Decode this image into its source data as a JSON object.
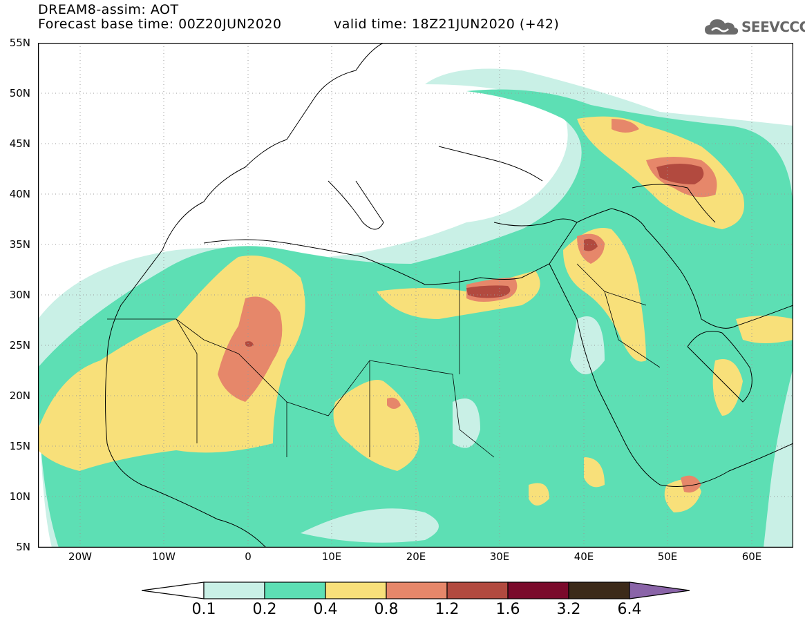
{
  "header": {
    "line1": "DREAM8-assim: AOT",
    "line2": "Forecast base time: 00Z20JUN2020",
    "valid": "valid time: 18Z21JUN2020 (+42)"
  },
  "logo": {
    "text": "SEEVCCC",
    "icon": "cloud-logo-icon"
  },
  "map": {
    "lat_labels": [
      "55N",
      "50N",
      "45N",
      "40N",
      "35N",
      "30N",
      "25N",
      "20N",
      "15N",
      "10N",
      "5N"
    ],
    "lon_labels": [
      "20W",
      "10W",
      "0",
      "10E",
      "20E",
      "30E",
      "40E",
      "50E",
      "60E"
    ],
    "lat_range": [
      5,
      55
    ],
    "lon_range": [
      -25,
      65
    ],
    "grid": "dotted"
  },
  "colorbar": {
    "levels": [
      "0.1",
      "0.2",
      "0.4",
      "0.8",
      "1.2",
      "1.6",
      "3.2",
      "6.4"
    ],
    "colors": [
      "#ffffff",
      "#c9f0e6",
      "#5ddfb4",
      "#f8e07a",
      "#e6876a",
      "#b24a3f",
      "#7a0a2b",
      "#3c2a19",
      "#8a64a8"
    ]
  }
}
